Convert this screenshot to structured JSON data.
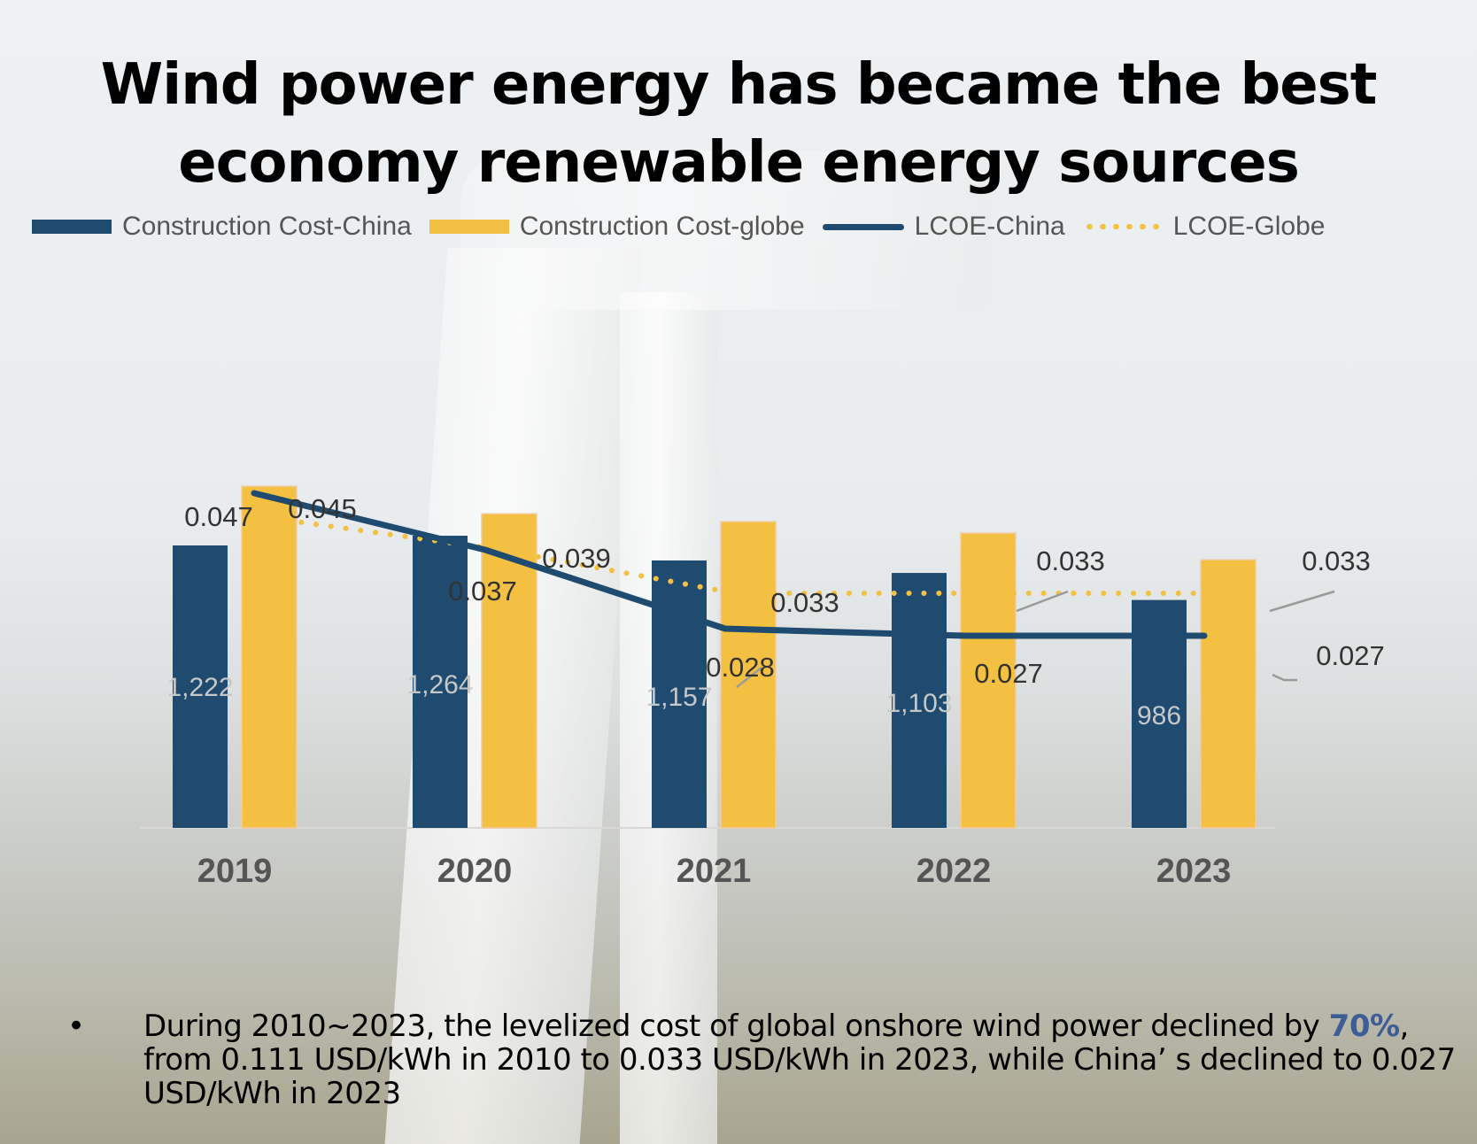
{
  "title_line1": "Wind power energy has became the best",
  "title_line2": "economy renewable energy sources",
  "colors": {
    "china": "#1f4b70",
    "globe": "#f4c042",
    "label_dark": "#333333",
    "label_light": "#c8c8c8",
    "highlight": "#3c5d96"
  },
  "chart_data": {
    "type": "bar",
    "title": "",
    "xlabel": "",
    "ylabel": "",
    "categories": [
      "2019",
      "2020",
      "2021",
      "2022",
      "2023"
    ],
    "series": [
      {
        "name": "Construction Cost-China",
        "type": "bar",
        "values": [
          1222,
          1264,
          1157,
          1103,
          986
        ],
        "labels": [
          "1,222",
          "1,264",
          "1,157",
          "1,103",
          "986"
        ]
      },
      {
        "name": "Construction Cost-globe",
        "type": "bar",
        "values": [
          1478,
          1359,
          1325,
          1275,
          1160
        ],
        "labels": []
      },
      {
        "name": "LCOE-China",
        "type": "line",
        "style": "solid",
        "values": [
          0.047,
          0.037,
          0.028,
          0.027,
          0.027
        ],
        "labels": [
          "0.047",
          "0.037",
          "0.028",
          "0.027",
          "0.027"
        ]
      },
      {
        "name": "LCOE-Globe",
        "type": "line",
        "style": "dotted",
        "values": [
          0.045,
          0.039,
          0.033,
          0.033,
          0.033
        ],
        "labels": [
          "0.045",
          "0.039",
          "0.033",
          "0.033",
          "0.033"
        ]
      }
    ],
    "bar_ylim": [
      0,
      1800
    ],
    "line_ylim": [
      0,
      0.065
    ],
    "grid": false,
    "legend_placement": "top"
  },
  "legend": [
    {
      "label": "Construction Cost-China"
    },
    {
      "label": "Construction Cost-globe"
    },
    {
      "label": "LCOE-China"
    },
    {
      "label": "LCOE-Globe"
    }
  ],
  "footer": {
    "bullet": "•",
    "text_part1": "During 2010~2023, the levelized cost of global onshore wind power declined by ",
    "highlight": "70%",
    "text_part2": ", from 0.111 USD/kWh in 2010 to 0.033 USD/kWh in 2023, while China’ s declined to 0.027 USD/kWh in 2023"
  }
}
